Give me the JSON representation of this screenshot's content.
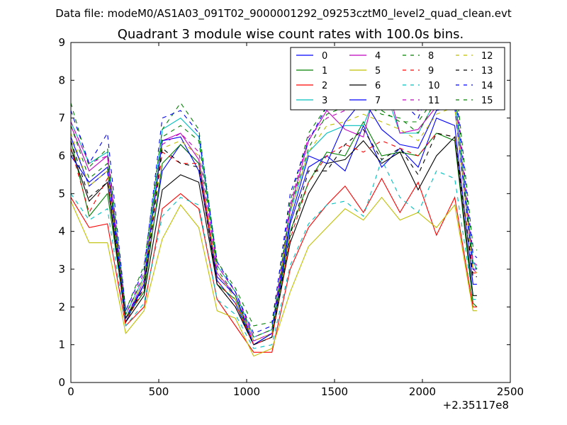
{
  "page": {
    "suptitle": "Data file: modeM0/AS1A03_091T02_9000001292_09253cztM0_level2_quad_clean.evt"
  },
  "chart_data": {
    "type": "line",
    "title": "Quadrant 3 module wise count rates with 100.0s bins.",
    "xlabel": "",
    "ylabel": "",
    "x_offset_label": "+2.35117e8",
    "xlim": [
      0,
      2500
    ],
    "ylim": [
      0,
      9
    ],
    "xticks": [
      "0",
      "500",
      "1000",
      "1500",
      "2000",
      "2500"
    ],
    "yticks": [
      "0",
      "1",
      "2",
      "3",
      "4",
      "5",
      "6",
      "7",
      "8",
      "9"
    ],
    "legend_position": "top-right",
    "x": [
      0,
      104,
      208,
      312,
      416,
      520,
      624,
      728,
      832,
      936,
      1040,
      1144,
      1248,
      1352,
      1456,
      1560,
      1664,
      1768,
      1872,
      1976,
      2080,
      2184,
      2288,
      2310
    ],
    "series": [
      {
        "name": "0",
        "color": "#0000ff",
        "dash": false,
        "values": [
          6.5,
          5.2,
          5.6,
          1.6,
          2.6,
          5.6,
          6.3,
          5.8,
          2.7,
          2.1,
          1.0,
          1.3,
          4.2,
          5.7,
          6.0,
          5.6,
          6.8,
          5.7,
          6.2,
          5.7,
          7.0,
          6.8,
          2.6,
          2.6
        ]
      },
      {
        "name": "1",
        "color": "#008000",
        "dash": false,
        "values": [
          6.4,
          4.4,
          5.0,
          1.7,
          2.4,
          5.8,
          6.3,
          5.8,
          2.6,
          2.2,
          1.0,
          1.3,
          4.0,
          5.3,
          6.1,
          6.0,
          6.9,
          6.0,
          6.1,
          6.0,
          6.6,
          6.4,
          2.1,
          2.0
        ]
      },
      {
        "name": "2",
        "color": "#ff0000",
        "dash": false,
        "values": [
          4.9,
          4.1,
          4.2,
          1.5,
          2.0,
          4.6,
          5.0,
          4.6,
          2.2,
          1.5,
          0.8,
          0.8,
          3.0,
          4.1,
          4.7,
          5.2,
          4.5,
          5.4,
          4.5,
          5.3,
          3.9,
          4.9,
          2.0,
          2.0
        ]
      },
      {
        "name": "3",
        "color": "#00bfbf",
        "dash": false,
        "values": [
          6.9,
          5.8,
          6.1,
          1.8,
          2.8,
          6.7,
          7.0,
          6.5,
          3.1,
          2.4,
          1.2,
          1.4,
          4.5,
          6.1,
          6.6,
          6.8,
          6.8,
          8.0,
          6.6,
          6.6,
          7.5,
          7.6,
          3.2,
          3.0
        ]
      },
      {
        "name": "4",
        "color": "#bf00bf",
        "dash": false,
        "values": [
          6.8,
          5.6,
          6.0,
          1.7,
          2.7,
          6.4,
          6.6,
          5.9,
          2.9,
          2.3,
          1.1,
          1.3,
          4.6,
          6.4,
          7.2,
          6.7,
          6.5,
          8.4,
          6.6,
          6.7,
          7.3,
          7.3,
          3.0,
          2.9
        ]
      },
      {
        "name": "5",
        "color": "#bfbf00",
        "dash": false,
        "values": [
          4.8,
          3.7,
          3.7,
          1.3,
          1.9,
          3.8,
          4.7,
          4.1,
          1.9,
          1.7,
          0.7,
          0.9,
          2.4,
          3.6,
          4.1,
          4.6,
          4.3,
          4.9,
          4.3,
          4.5,
          4.1,
          4.7,
          1.9,
          1.9
        ]
      },
      {
        "name": "6",
        "color": "#000000",
        "dash": false,
        "values": [
          6.2,
          4.8,
          5.3,
          1.6,
          2.3,
          5.1,
          5.5,
          5.3,
          2.6,
          2.0,
          1.0,
          1.2,
          3.7,
          5.0,
          5.8,
          5.9,
          6.4,
          5.8,
          6.1,
          5.1,
          6.0,
          6.5,
          2.3,
          2.3
        ]
      },
      {
        "name": "7",
        "color": "#0000ff",
        "dash": false,
        "values": [
          6.0,
          5.3,
          5.7,
          1.7,
          2.6,
          6.4,
          6.5,
          5.6,
          2.8,
          2.3,
          1.0,
          1.3,
          4.3,
          6.0,
          5.8,
          6.9,
          7.5,
          6.7,
          6.3,
          6.2,
          7.2,
          7.3,
          3.0,
          3.0
        ]
      },
      {
        "name": "8",
        "color": "#008000",
        "dash": true,
        "values": [
          7.4,
          5.7,
          6.2,
          1.9,
          3.1,
          6.7,
          7.4,
          6.7,
          3.2,
          2.5,
          1.5,
          1.6,
          4.8,
          6.6,
          7.3,
          7.5,
          7.6,
          7.2,
          6.9,
          6.9,
          7.6,
          8.2,
          3.6,
          3.5
        ]
      },
      {
        "name": "9",
        "color": "#ff0000",
        "dash": true,
        "values": [
          6.2,
          4.5,
          5.4,
          1.6,
          2.5,
          6.1,
          5.8,
          5.8,
          2.7,
          2.1,
          1.0,
          1.2,
          3.8,
          5.3,
          6.0,
          6.3,
          6.1,
          6.4,
          6.2,
          6.0,
          6.6,
          6.5,
          2.9,
          2.9
        ]
      },
      {
        "name": "10",
        "color": "#00bfbf",
        "dash": true,
        "values": [
          5.0,
          4.3,
          4.6,
          1.5,
          2.1,
          4.4,
          4.9,
          4.7,
          2.2,
          1.8,
          0.9,
          1.0,
          3.1,
          4.2,
          4.7,
          4.8,
          4.4,
          5.9,
          4.9,
          4.5,
          5.6,
          5.4,
          2.2,
          2.2
        ]
      },
      {
        "name": "11",
        "color": "#bf00bf",
        "dash": true,
        "values": [
          6.9,
          5.8,
          6.0,
          1.8,
          2.9,
          6.3,
          6.6,
          6.1,
          3.1,
          2.4,
          1.2,
          1.4,
          4.7,
          6.5,
          7.0,
          7.2,
          7.3,
          8.0,
          7.6,
          7.2,
          7.6,
          7.8,
          3.2,
          3.1
        ]
      },
      {
        "name": "12",
        "color": "#bfbf00",
        "dash": true,
        "values": [
          6.6,
          5.2,
          5.6,
          1.7,
          2.7,
          6.2,
          6.4,
          6.0,
          2.9,
          2.2,
          1.1,
          1.3,
          4.5,
          6.1,
          6.8,
          6.9,
          7.1,
          6.9,
          6.7,
          6.4,
          7.1,
          7.3,
          3.0,
          2.9
        ]
      },
      {
        "name": "13",
        "color": "#000000",
        "dash": true,
        "values": [
          6.4,
          4.9,
          5.3,
          1.7,
          2.5,
          6.2,
          5.8,
          5.7,
          2.6,
          2.0,
          1.0,
          1.2,
          3.9,
          5.6,
          5.6,
          6.3,
          6.7,
          5.9,
          6.2,
          5.5,
          6.6,
          6.5,
          2.8,
          2.8
        ]
      },
      {
        "name": "14",
        "color": "#0000ff",
        "dash": true,
        "values": [
          7.2,
          5.8,
          6.6,
          1.9,
          3.0,
          7.0,
          7.2,
          6.6,
          3.2,
          2.4,
          1.3,
          1.5,
          5.0,
          6.4,
          7.3,
          7.5,
          7.8,
          7.3,
          7.5,
          7.0,
          8.2,
          8.0,
          3.4,
          3.3
        ]
      },
      {
        "name": "15",
        "color": "#008000",
        "dash": true,
        "values": [
          6.8,
          5.4,
          5.8,
          1.8,
          2.8,
          6.5,
          6.8,
          6.4,
          3.0,
          2.3,
          1.2,
          1.4,
          4.6,
          6.2,
          7.1,
          7.3,
          7.4,
          7.1,
          7.0,
          6.6,
          7.5,
          7.7,
          3.1,
          3.0
        ]
      }
    ]
  }
}
